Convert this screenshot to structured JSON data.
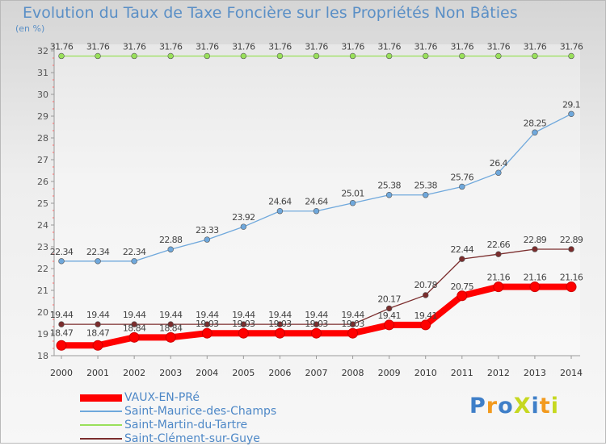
{
  "chart_data": {
    "type": "line",
    "title": "Evolution du Taux de Taxe Foncière sur les Propriétés Non Bâties",
    "ylabel": "(en %)",
    "xlabel": "",
    "ylim": [
      18,
      32
    ],
    "yticks": [
      18,
      19,
      20,
      21,
      22,
      23,
      24,
      25,
      26,
      27,
      28,
      29,
      30,
      31,
      32
    ],
    "grid": false,
    "legend_position": "bottom-left",
    "x": [
      "2000",
      "2001",
      "2002",
      "2003",
      "2004",
      "2005",
      "2006",
      "2007",
      "2008",
      "2009",
      "2010",
      "2011",
      "2012",
      "2013",
      "2014"
    ],
    "series": [
      {
        "name": "VAUX-EN-PRé",
        "color": "#ff0000",
        "values": [
          18.47,
          18.47,
          18.84,
          18.84,
          19.03,
          19.03,
          19.03,
          19.03,
          19.03,
          19.41,
          19.41,
          20.75,
          21.16,
          21.16,
          21.16
        ],
        "labels": [
          "18.47",
          "18.47",
          "18.84",
          "18.84",
          "19.03",
          "19.03",
          "19.03",
          "19.03",
          "19.03",
          "19.41",
          "19.41",
          "20.75",
          "21.16",
          "21.16",
          "21.16"
        ]
      },
      {
        "name": "Saint-Maurice-des-Champs",
        "color": "#6fa8dc",
        "values": [
          22.34,
          22.34,
          22.34,
          22.88,
          23.33,
          23.92,
          24.64,
          24.64,
          25.01,
          25.38,
          25.38,
          25.76,
          26.4,
          28.25,
          29.1
        ],
        "labels": [
          "22.34",
          "22.34",
          "22.34",
          "22.88",
          "23.33",
          "23.92",
          "24.64",
          "24.64",
          "25.01",
          "25.38",
          "25.38",
          "25.76",
          "26.4",
          "28.25",
          "29.1"
        ]
      },
      {
        "name": "Saint-Martin-du-Tartre",
        "color": "#99e05a",
        "values": [
          31.76,
          31.76,
          31.76,
          31.76,
          31.76,
          31.76,
          31.76,
          31.76,
          31.76,
          31.76,
          31.76,
          31.76,
          31.76,
          31.76,
          31.76
        ],
        "labels": [
          "31.76",
          "31.76",
          "31.76",
          "31.76",
          "31.76",
          "31.76",
          "31.76",
          "31.76",
          "31.76",
          "31.76",
          "31.76",
          "31.76",
          "31.76",
          "31.76",
          "31.76"
        ]
      },
      {
        "name": "Saint-Clément-sur-Guye",
        "color": "#7b2d2d",
        "values": [
          19.44,
          19.44,
          19.44,
          19.44,
          19.44,
          19.44,
          19.44,
          19.44,
          19.44,
          20.17,
          20.78,
          22.44,
          22.66,
          22.89,
          22.89
        ],
        "labels": [
          "19.44",
          "19.44",
          "19.44",
          "19.44",
          "19.44",
          "19.44",
          "19.44",
          "19.44",
          "19.44",
          "20.17",
          "20.78",
          "22.44",
          "22.66",
          "22.89",
          "22.89"
        ]
      }
    ]
  },
  "logo": {
    "text": "ProXiti",
    "colors": [
      "#3f7fc8",
      "#f29a1e",
      "#3f7fc8",
      "#c6d820",
      "#3f7fc8",
      "#f29a1e",
      "#c6d820"
    ]
  }
}
